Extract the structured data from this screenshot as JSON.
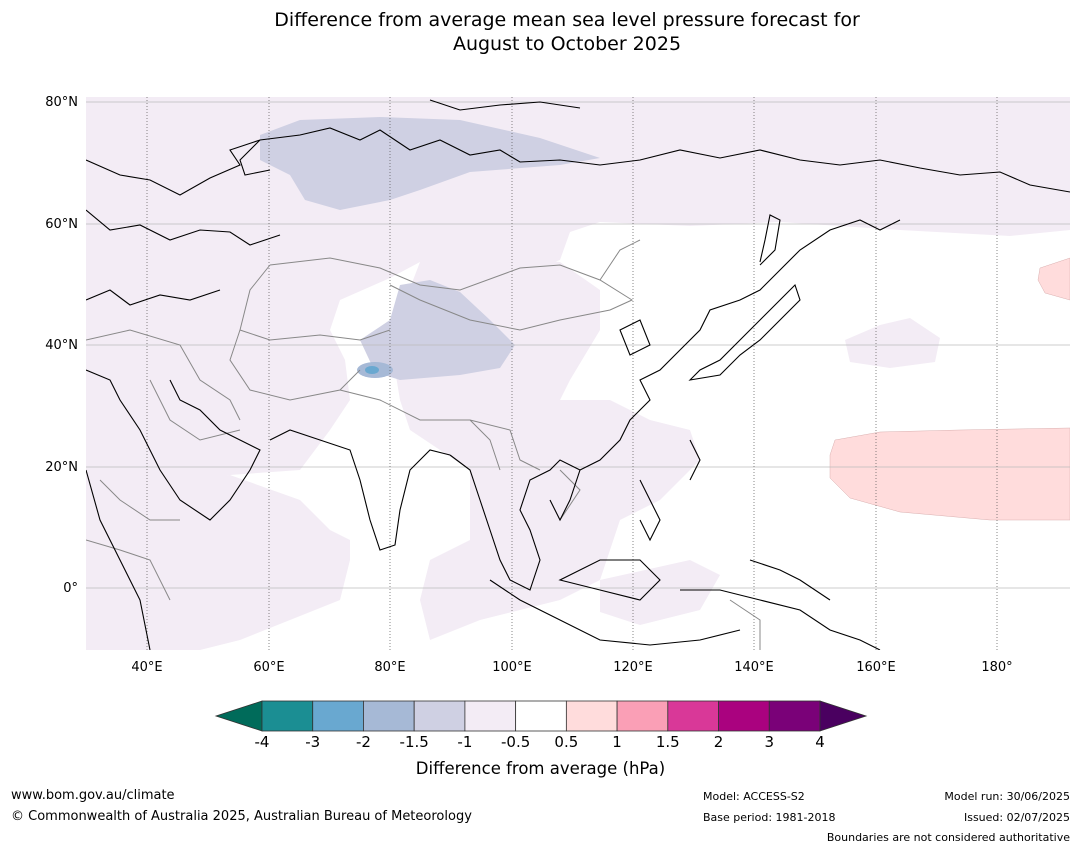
{
  "title_line1": "Difference from average mean sea level pressure forecast for",
  "title_line2": "August to October 2025",
  "lat_labels": [
    "80°N",
    "60°N",
    "40°N",
    "20°N",
    "0°"
  ],
  "lon_labels": [
    "40°E",
    "60°E",
    "80°E",
    "100°E",
    "120°E",
    "140°E",
    "160°E",
    "180°"
  ],
  "colorbar": {
    "ticks": [
      "-4",
      "-3",
      "-2",
      "-1.5",
      "-1",
      "-0.5",
      "0.5",
      "1",
      "1.5",
      "2",
      "3",
      "4"
    ],
    "colors": [
      "#1b8e93",
      "#69a8d0",
      "#a6b9d6",
      "#cfd0e3",
      "#f3ecf5",
      "#ffffff",
      "#ffdcdc",
      "#fa9fb6",
      "#d93898",
      "#aa027f",
      "#7a0178"
    ],
    "under_color": "#006b5a",
    "over_color": "#4a0060",
    "label": "Difference from average (hPa)"
  },
  "footer": {
    "website": "www.bom.gov.au/climate",
    "copyright": "© Commonwealth of Australia 2025, Australian Bureau of Meteorology",
    "model": "Model: ACCESS-S2",
    "base_period": "Base period: 1981-2018",
    "model_run": "Model run: 30/06/2025",
    "issued": "Issued: 02/07/2025",
    "disclaimer": "Boundaries are not considered authoritative"
  }
}
